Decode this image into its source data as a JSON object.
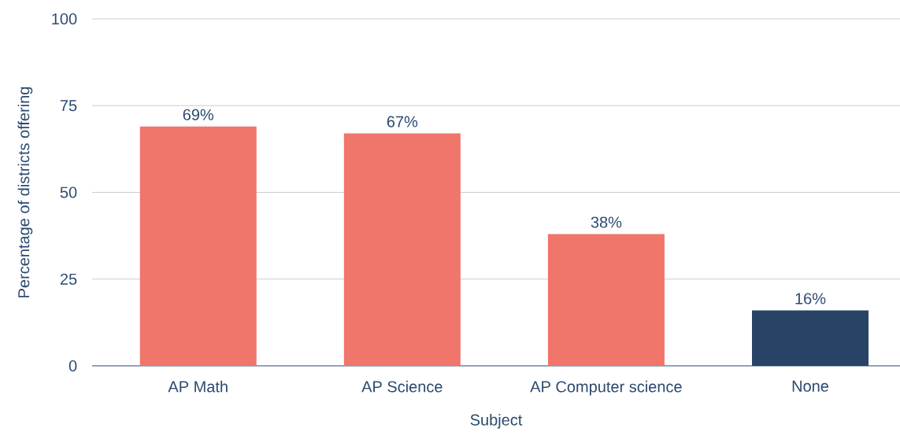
{
  "chart_data": {
    "type": "bar",
    "xlabel": "Subject",
    "ylabel": "Percentage of districts offering",
    "categories": [
      "AP Math",
      "AP Science",
      "AP Computer science",
      "None"
    ],
    "values": [
      69,
      67,
      38,
      16
    ],
    "colors": [
      "#f0756b",
      "#f0756b",
      "#f0756b",
      "#284366"
    ],
    "value_labels": [
      "69%",
      "67%",
      "38%",
      "16%"
    ],
    "ylim": [
      0,
      100
    ],
    "yticks": [
      0,
      25,
      50,
      75,
      100
    ],
    "grid": "y"
  }
}
